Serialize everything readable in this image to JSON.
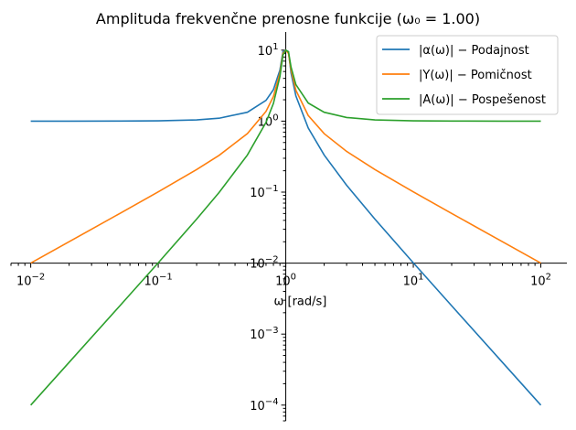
{
  "chart_data": {
    "type": "line",
    "title": "Amplituda frekvenčne prenosne funkcije (ω₀ = 1.00)",
    "xlabel": "ω [rad/s]",
    "ylabel": "",
    "xscale": "log",
    "yscale": "log",
    "xlim": [
      0.007,
      160
    ],
    "ylim": [
      6e-05,
      18
    ],
    "grid": false,
    "legend_position": "top-right",
    "x_ticks": [
      {
        "base": "10",
        "exp": "−2",
        "value": 0.01
      },
      {
        "base": "10",
        "exp": "−1",
        "value": 0.1
      },
      {
        "base": "10",
        "exp": "0",
        "value": 1
      },
      {
        "base": "10",
        "exp": "1",
        "value": 10
      },
      {
        "base": "10",
        "exp": "2",
        "value": 100
      }
    ],
    "y_ticks": [
      {
        "base": "10",
        "exp": "−4",
        "value": 0.0001
      },
      {
        "base": "10",
        "exp": "−3",
        "value": 0.001
      },
      {
        "base": "10",
        "exp": "−2",
        "value": 0.01
      },
      {
        "base": "10",
        "exp": "−1",
        "value": 0.1
      },
      {
        "base": "10",
        "exp": "0",
        "value": 1
      },
      {
        "base": "10",
        "exp": "1",
        "value": 10
      }
    ],
    "series": [
      {
        "name": "|α(ω)| − Podajnost",
        "color": "#1f77b4",
        "x": [
          0.01,
          0.02,
          0.05,
          0.1,
          0.2,
          0.3,
          0.5,
          0.7,
          0.8,
          0.9,
          0.95,
          1.0,
          1.05,
          1.1,
          1.2,
          1.5,
          2,
          3,
          5,
          10,
          20,
          50,
          100
        ],
        "y": [
          1.0,
          1.0004,
          1.0025,
          1.0101,
          1.0417,
          1.0989,
          1.3333,
          1.9608,
          2.7778,
          5.2632,
          9.5,
          10.0,
          9.5,
          4.7619,
          2.2727,
          0.8,
          0.3333,
          0.125,
          0.04167,
          0.010101,
          0.0025063,
          0.00040016,
          0.00010001
        ]
      },
      {
        "name": "|Y(ω)| − Pomičnost",
        "color": "#ff7f0e",
        "x": [
          0.01,
          0.02,
          0.05,
          0.1,
          0.2,
          0.3,
          0.5,
          0.7,
          0.8,
          0.9,
          0.95,
          1.0,
          1.05,
          1.1,
          1.2,
          1.5,
          2,
          3,
          5,
          10,
          20,
          50,
          100
        ],
        "y": [
          0.01,
          0.020008,
          0.050125,
          0.10101,
          0.20833,
          0.32967,
          0.66667,
          1.3725,
          2.2222,
          4.7368,
          9.0,
          10.0,
          9.0,
          5.2381,
          2.7273,
          1.2,
          0.66667,
          0.375,
          0.20833,
          0.10101,
          0.050125,
          0.020008,
          0.010001
        ]
      },
      {
        "name": "|A(ω)| − Pospešenost",
        "color": "#2ca02c",
        "x": [
          0.01,
          0.02,
          0.05,
          0.1,
          0.2,
          0.3,
          0.5,
          0.7,
          0.8,
          0.9,
          0.95,
          1.0,
          1.05,
          1.1,
          1.2,
          1.5,
          2,
          3,
          5,
          10,
          20,
          50,
          100
        ],
        "y": [
          0.0001,
          0.00040016,
          0.0025063,
          0.010101,
          0.041667,
          0.098901,
          0.33333,
          0.96078,
          1.7778,
          4.2632,
          8.5,
          10.0,
          9.5,
          5.7619,
          3.2727,
          1.8,
          1.3333,
          1.125,
          1.0417,
          1.0101,
          1.0025,
          1.0004,
          1.0
        ]
      }
    ]
  }
}
